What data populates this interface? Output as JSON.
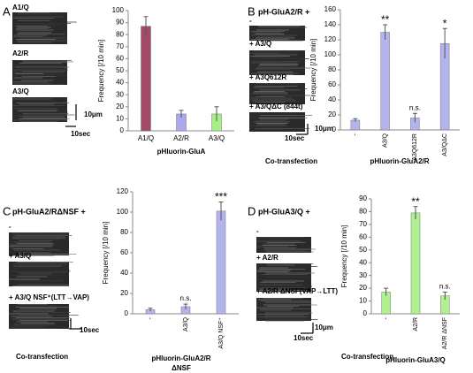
{
  "chart_data": [
    {
      "type": "bar",
      "panel": "A",
      "image_labels": [
        "A1/Q",
        "A2/R",
        "A3/Q"
      ],
      "scale_labels": [
        "10μm",
        "10sec"
      ],
      "y_label": "Frequency [/10 min]",
      "x_label": [
        "pHluorin-GluA"
      ],
      "categories": [
        "A1/Q",
        "A2/R",
        "A3/Q"
      ],
      "values": [
        87,
        14,
        14
      ],
      "errors": [
        8,
        3,
        6
      ],
      "colors": [
        "#a34a66",
        "#a9a9ee",
        "#a6ee86"
      ],
      "ylim": [
        0,
        100
      ],
      "yticks": [
        0,
        10,
        20,
        30,
        40,
        50,
        60,
        70,
        80,
        90,
        100
      ]
    },
    {
      "type": "bar",
      "panel": "B",
      "header": "pH-GluA2/R  +",
      "image_labels": [
        "-",
        "+ A3/Q",
        "+ A3Q612R",
        "+ A3/QΔC (844t)"
      ],
      "scale_labels": [
        "10μm",
        "10sec"
      ],
      "y_label": "Frequency [/10 min]",
      "x_label": [
        "pHluorin-GluA2/R"
      ],
      "group_label": "Co-transfection",
      "categories": [
        "-",
        "A3/Q",
        "A3Q612R",
        "A3/QΔC"
      ],
      "values": [
        13,
        130,
        16,
        115
      ],
      "errors": [
        2,
        10,
        6,
        20
      ],
      "annotations": [
        null,
        "**",
        "n.s.",
        "*"
      ],
      "colors": [
        "#b3b3ee",
        "#b3b3ee",
        "#b3b3ee",
        "#b3b3ee"
      ],
      "ylim": [
        0,
        160
      ],
      "yticks": [
        0,
        20,
        40,
        60,
        80,
        100,
        120,
        140,
        160
      ]
    },
    {
      "type": "bar",
      "panel": "C",
      "header": "pH-GluA2/RΔNSF  +",
      "image_labels": [
        "-",
        "+ A3/Q",
        "+ A3/Q NSF⁺(LTT→VAP)"
      ],
      "scale_labels": [
        "10sec"
      ],
      "y_label": "Frequency [/10 min]",
      "x_label": [
        "pHluorin-GluA2/R",
        "ΔNSF"
      ],
      "group_label": "Co-transfection",
      "categories": [
        "-",
        "A3/Q",
        "A3/Q NSF⁺"
      ],
      "values": [
        4,
        7,
        101
      ],
      "errors": [
        1.5,
        2.5,
        9
      ],
      "annotations": [
        null,
        "n.s.",
        "***"
      ],
      "colors": [
        "#b3b3ee",
        "#b3b3ee",
        "#b3b3ee"
      ],
      "ylim": [
        0,
        120
      ],
      "yticks": [
        0,
        20,
        40,
        60,
        80,
        100,
        120
      ]
    },
    {
      "type": "bar",
      "panel": "D",
      "header": "pH-GluA3/Q  +",
      "image_labels": [
        "-",
        "+ A2/R",
        "+ A2/R ΔNSF(VAP→LTT)"
      ],
      "scale_labels": [
        "10μm",
        "10sec"
      ],
      "y_label": "Frequency [/10 min]",
      "x_label": [
        "pHluorin-GluA3/Q"
      ],
      "group_label": "Co-transfection",
      "categories": [
        "-",
        "A2/R",
        "A2/R ΔNSF"
      ],
      "values": [
        17,
        79,
        14
      ],
      "errors": [
        3,
        5,
        3
      ],
      "annotations": [
        null,
        "**",
        "n.s."
      ],
      "colors": [
        "#b0f090",
        "#b0f090",
        "#b0f090"
      ],
      "ylim": [
        0,
        90
      ],
      "yticks": [
        0,
        10,
        20,
        30,
        40,
        50,
        60,
        70,
        80,
        90
      ]
    }
  ]
}
